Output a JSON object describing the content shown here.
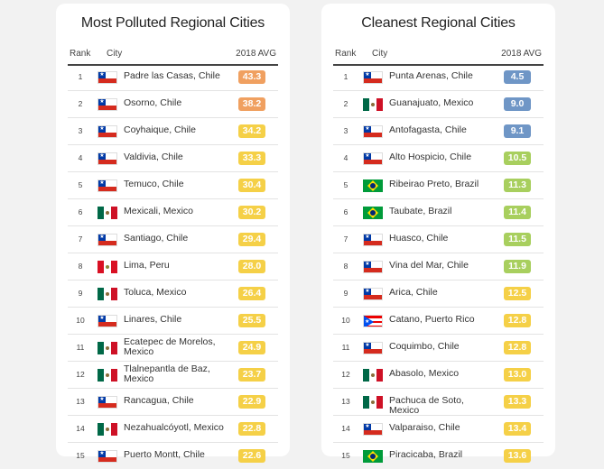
{
  "colors": {
    "orange": "#f0a060",
    "yellow": "#f5d047",
    "green": "#a8cf5e",
    "blue": "#6f96c6"
  },
  "left": {
    "title": "Most Polluted Regional Cities",
    "headers": {
      "rank": "Rank",
      "city": "City",
      "avg": "2018 AVG"
    },
    "rows": [
      {
        "rank": "1",
        "city": "Padre las Casas, Chile",
        "value": "43.3",
        "flag": "flag-chile",
        "color": "#f0a060"
      },
      {
        "rank": "2",
        "city": "Osorno, Chile",
        "value": "38.2",
        "flag": "flag-chile",
        "color": "#f0a060"
      },
      {
        "rank": "3",
        "city": "Coyhaique, Chile",
        "value": "34.2",
        "flag": "flag-chile",
        "color": "#f5d047"
      },
      {
        "rank": "4",
        "city": "Valdivia, Chile",
        "value": "33.3",
        "flag": "flag-chile",
        "color": "#f5d047"
      },
      {
        "rank": "5",
        "city": "Temuco, Chile",
        "value": "30.4",
        "flag": "flag-chile",
        "color": "#f5d047"
      },
      {
        "rank": "6",
        "city": "Mexicali, Mexico",
        "value": "30.2",
        "flag": "flag-mexico",
        "color": "#f5d047"
      },
      {
        "rank": "7",
        "city": "Santiago, Chile",
        "value": "29.4",
        "flag": "flag-chile",
        "color": "#f5d047"
      },
      {
        "rank": "8",
        "city": "Lima, Peru",
        "value": "28.0",
        "flag": "flag-peru",
        "color": "#f5d047"
      },
      {
        "rank": "9",
        "city": "Toluca, Mexico",
        "value": "26.4",
        "flag": "flag-mexico",
        "color": "#f5d047"
      },
      {
        "rank": "10",
        "city": "Linares, Chile",
        "value": "25.5",
        "flag": "flag-chile",
        "color": "#f5d047"
      },
      {
        "rank": "11",
        "city": "Ecatepec de Morelos, Mexico",
        "value": "24.9",
        "flag": "flag-mexico",
        "color": "#f5d047"
      },
      {
        "rank": "12",
        "city": "Tlalnepantla de Baz, Mexico",
        "value": "23.7",
        "flag": "flag-mexico",
        "color": "#f5d047"
      },
      {
        "rank": "13",
        "city": "Rancagua, Chile",
        "value": "22.9",
        "flag": "flag-chile",
        "color": "#f5d047"
      },
      {
        "rank": "14",
        "city": "Nezahualcóyotl, Mexico",
        "value": "22.8",
        "flag": "flag-mexico",
        "color": "#f5d047"
      },
      {
        "rank": "15",
        "city": "Puerto Montt, Chile",
        "value": "22.6",
        "flag": "flag-chile",
        "color": "#f5d047"
      }
    ]
  },
  "right": {
    "title": "Cleanest Regional Cities",
    "headers": {
      "rank": "Rank",
      "city": "City",
      "avg": "2018 AVG"
    },
    "rows": [
      {
        "rank": "1",
        "city": "Punta Arenas, Chile",
        "value": "4.5",
        "flag": "flag-chile",
        "color": "#6f96c6"
      },
      {
        "rank": "2",
        "city": "Guanajuato, Mexico",
        "value": "9.0",
        "flag": "flag-mexico",
        "color": "#6f96c6"
      },
      {
        "rank": "3",
        "city": "Antofagasta, Chile",
        "value": "9.1",
        "flag": "flag-chile",
        "color": "#6f96c6"
      },
      {
        "rank": "4",
        "city": "Alto Hospicio, Chile",
        "value": "10.5",
        "flag": "flag-chile",
        "color": "#a8cf5e"
      },
      {
        "rank": "5",
        "city": "Ribeirao Preto, Brazil",
        "value": "11.3",
        "flag": "flag-brazil",
        "color": "#a8cf5e"
      },
      {
        "rank": "6",
        "city": "Taubate, Brazil",
        "value": "11.4",
        "flag": "flag-brazil",
        "color": "#a8cf5e"
      },
      {
        "rank": "7",
        "city": "Huasco, Chile",
        "value": "11.5",
        "flag": "flag-chile",
        "color": "#a8cf5e"
      },
      {
        "rank": "8",
        "city": "Vina del Mar, Chile",
        "value": "11.9",
        "flag": "flag-chile",
        "color": "#a8cf5e"
      },
      {
        "rank": "9",
        "city": "Arica, Chile",
        "value": "12.5",
        "flag": "flag-chile",
        "color": "#f5d047"
      },
      {
        "rank": "10",
        "city": "Catano, Puerto Rico",
        "value": "12.8",
        "flag": "flag-puerto-rico",
        "color": "#f5d047"
      },
      {
        "rank": "11",
        "city": "Coquimbo, Chile",
        "value": "12.8",
        "flag": "flag-chile",
        "color": "#f5d047"
      },
      {
        "rank": "12",
        "city": "Abasolo, Mexico",
        "value": "13.0",
        "flag": "flag-mexico",
        "color": "#f5d047"
      },
      {
        "rank": "13",
        "city": "Pachuca de Soto, Mexico",
        "value": "13.3",
        "flag": "flag-mexico",
        "color": "#f5d047"
      },
      {
        "rank": "14",
        "city": "Valparaiso, Chile",
        "value": "13.4",
        "flag": "flag-chile",
        "color": "#f5d047"
      },
      {
        "rank": "15",
        "city": "Piracicaba, Brazil",
        "value": "13.6",
        "flag": "flag-brazil",
        "color": "#f5d047"
      }
    ]
  }
}
